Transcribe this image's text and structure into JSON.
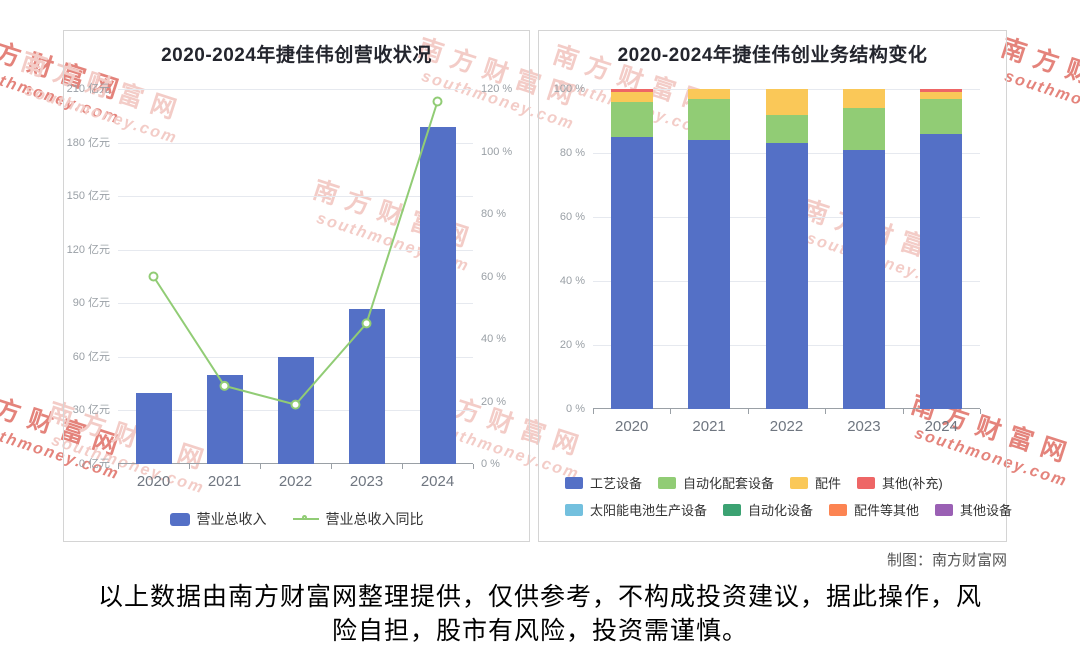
{
  "watermark": {
    "brand": "南方财富网",
    "domain": "southmoney.com"
  },
  "credit": "制图：南方财富网",
  "disclaimer": {
    "line1": "以上数据由南方财富网整理提供，仅供参考，不构成投资建议，据此操作，风",
    "line2": "险自担，股市有风险，投资需谨慎。"
  },
  "colors": {
    "bar_blue": "#5470c6",
    "line_green": "#91cc75",
    "yellow": "#fac858",
    "red": "#ee6666",
    "cyan": "#73c0de",
    "dark_green": "#3ba272",
    "orange": "#fc8452",
    "purple": "#9a60b4",
    "watermark_pink": "#f3ccc7",
    "watermark_red": "#e4837b"
  },
  "chart_data": [
    {
      "type": "bar",
      "subtype": "bar-with-line",
      "title": "2020-2024年捷佳伟创营收状况",
      "categories": [
        "2020",
        "2021",
        "2022",
        "2023",
        "2024"
      ],
      "series": [
        {
          "name": "营业总收入",
          "type": "bar",
          "axis": "left",
          "unit": "亿元",
          "color": "#5470c6",
          "values": [
            40,
            50,
            60,
            87,
            189
          ]
        },
        {
          "name": "营业总收入同比",
          "type": "line",
          "axis": "right",
          "unit": "%",
          "color": "#91cc75",
          "values": [
            60,
            25,
            19,
            45,
            116
          ]
        }
      ],
      "left_axis": {
        "min": 0,
        "max": 210,
        "step": 30,
        "unit": "亿元",
        "tick_labels": [
          "0 亿元",
          "30 亿元",
          "60 亿元",
          "90 亿元",
          "120 亿元",
          "150 亿元",
          "180 亿元",
          "210 亿元"
        ]
      },
      "right_axis": {
        "min": 0,
        "max": 120,
        "step": 20,
        "unit": "%",
        "tick_labels": [
          "0 %",
          "20 %",
          "40 %",
          "60 %",
          "80 %",
          "100 %",
          "120 %"
        ]
      },
      "grid": true,
      "legend_position": "bottom"
    },
    {
      "type": "bar",
      "subtype": "stacked-percent",
      "title": "2020-2024年捷佳伟创业务结构变化",
      "categories": [
        "2020",
        "2021",
        "2022",
        "2023",
        "2024"
      ],
      "y_axis": {
        "min": 0,
        "max": 100,
        "step": 20,
        "unit": "%",
        "tick_labels": [
          "0 %",
          "20 %",
          "40 %",
          "60 %",
          "80 %",
          "100 %"
        ]
      },
      "series": [
        {
          "name": "工艺设备",
          "color": "#5470c6",
          "values": [
            85,
            84,
            83,
            81,
            86
          ]
        },
        {
          "name": "自动化配套设备",
          "color": "#91cc75",
          "values": [
            11,
            13,
            9,
            13,
            11
          ]
        },
        {
          "name": "配件",
          "color": "#fac858",
          "values": [
            3,
            3,
            8,
            6,
            2
          ]
        },
        {
          "name": "其他(补充)",
          "color": "#ee6666",
          "values": [
            1,
            0,
            0,
            0,
            1
          ]
        },
        {
          "name": "太阳能电池生产设备",
          "color": "#73c0de",
          "values": [
            0,
            0,
            0,
            0,
            0
          ]
        },
        {
          "name": "自动化设备",
          "color": "#3ba272",
          "values": [
            0,
            0,
            0,
            0,
            0
          ]
        },
        {
          "name": "配件等其他",
          "color": "#fc8452",
          "values": [
            0,
            0,
            0,
            0,
            0
          ]
        },
        {
          "name": "其他设备",
          "color": "#9a60b4",
          "values": [
            0,
            0,
            0,
            0,
            0
          ]
        }
      ],
      "grid": true,
      "legend_position": "bottom"
    }
  ]
}
